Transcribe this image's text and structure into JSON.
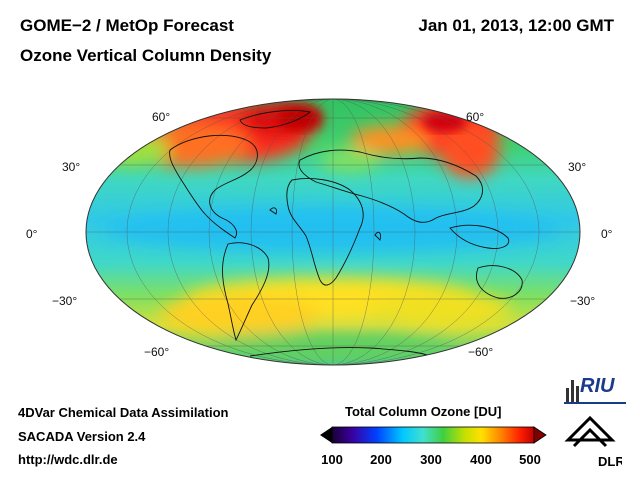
{
  "header": {
    "title_left": "GOME−2 / MetOp Forecast",
    "subtitle": "Ozone Vertical Column Density",
    "title_right": "Jan 01, 2013, 12:00 GMT"
  },
  "map": {
    "projection": "Mollweide",
    "latitude_labels_left": [
      "60°",
      "30°",
      "0°",
      "−30°",
      "−60°"
    ],
    "latitude_labels_right": [
      "60°",
      "30°",
      "0°",
      "−30°",
      "−60°"
    ]
  },
  "colorbar": {
    "title": "Total Column Ozone [DU]",
    "ticks": [
      "100",
      "200",
      "300",
      "400",
      "500"
    ],
    "colors": [
      "#1a0033",
      "#3a00a0",
      "#0040ff",
      "#00c8ff",
      "#40e0d0",
      "#40d040",
      "#c8e000",
      "#ffe000",
      "#ff8000",
      "#ff2000",
      "#c00000"
    ]
  },
  "footer": {
    "line1": "4DVar Chemical Data Assimilation",
    "line2": "SACADA Version 2.4",
    "line3": "http://wdc.dlr.de"
  },
  "logos": {
    "riu": "RIU",
    "dlr": "DLR"
  }
}
